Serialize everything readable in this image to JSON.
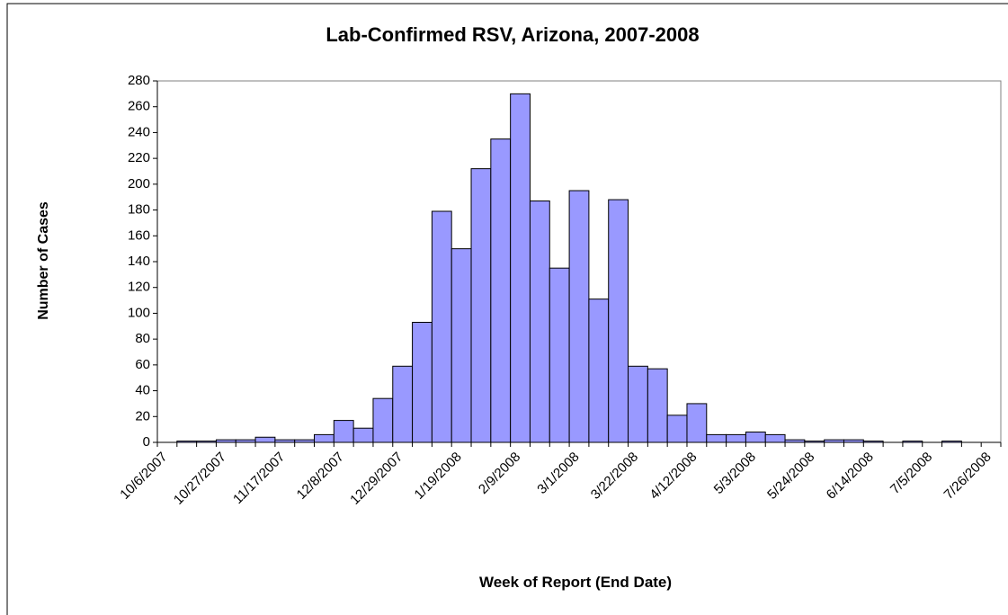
{
  "chart_data": {
    "type": "bar",
    "title": "Lab-Confirmed RSV, Arizona, 2007-2008",
    "x_label": "Week of Report (End Date)",
    "y_label": "Number of Cases",
    "categories": [
      "10/6/2007",
      null,
      null,
      "10/27/2007",
      null,
      null,
      "11/17/2007",
      null,
      null,
      "12/8/2007",
      null,
      null,
      "12/29/2007",
      null,
      null,
      "1/19/2008",
      null,
      null,
      "2/9/2008",
      null,
      null,
      "3/1/2008",
      null,
      null,
      "3/22/2008",
      null,
      null,
      "4/12/2008",
      null,
      null,
      "5/3/2008",
      null,
      null,
      "5/24/2008",
      null,
      null,
      "6/14/2008",
      null,
      null,
      "7/5/2008",
      null,
      null,
      "7/26/2008"
    ],
    "values": [
      0,
      1,
      1,
      2,
      2,
      4,
      2,
      2,
      6,
      17,
      11,
      34,
      59,
      93,
      179,
      150,
      212,
      235,
      270,
      187,
      135,
      195,
      111,
      188,
      59,
      57,
      21,
      30,
      6,
      6,
      8,
      6,
      2,
      1,
      2,
      2,
      1,
      0,
      1,
      0,
      1,
      0,
      0
    ],
    "color": "#9999ff",
    "ylim": [
      0,
      280
    ],
    "yticks": [
      0,
      20,
      40,
      60,
      80,
      100,
      120,
      140,
      160,
      180,
      200,
      220,
      240,
      260,
      280
    ],
    "grid": false
  }
}
